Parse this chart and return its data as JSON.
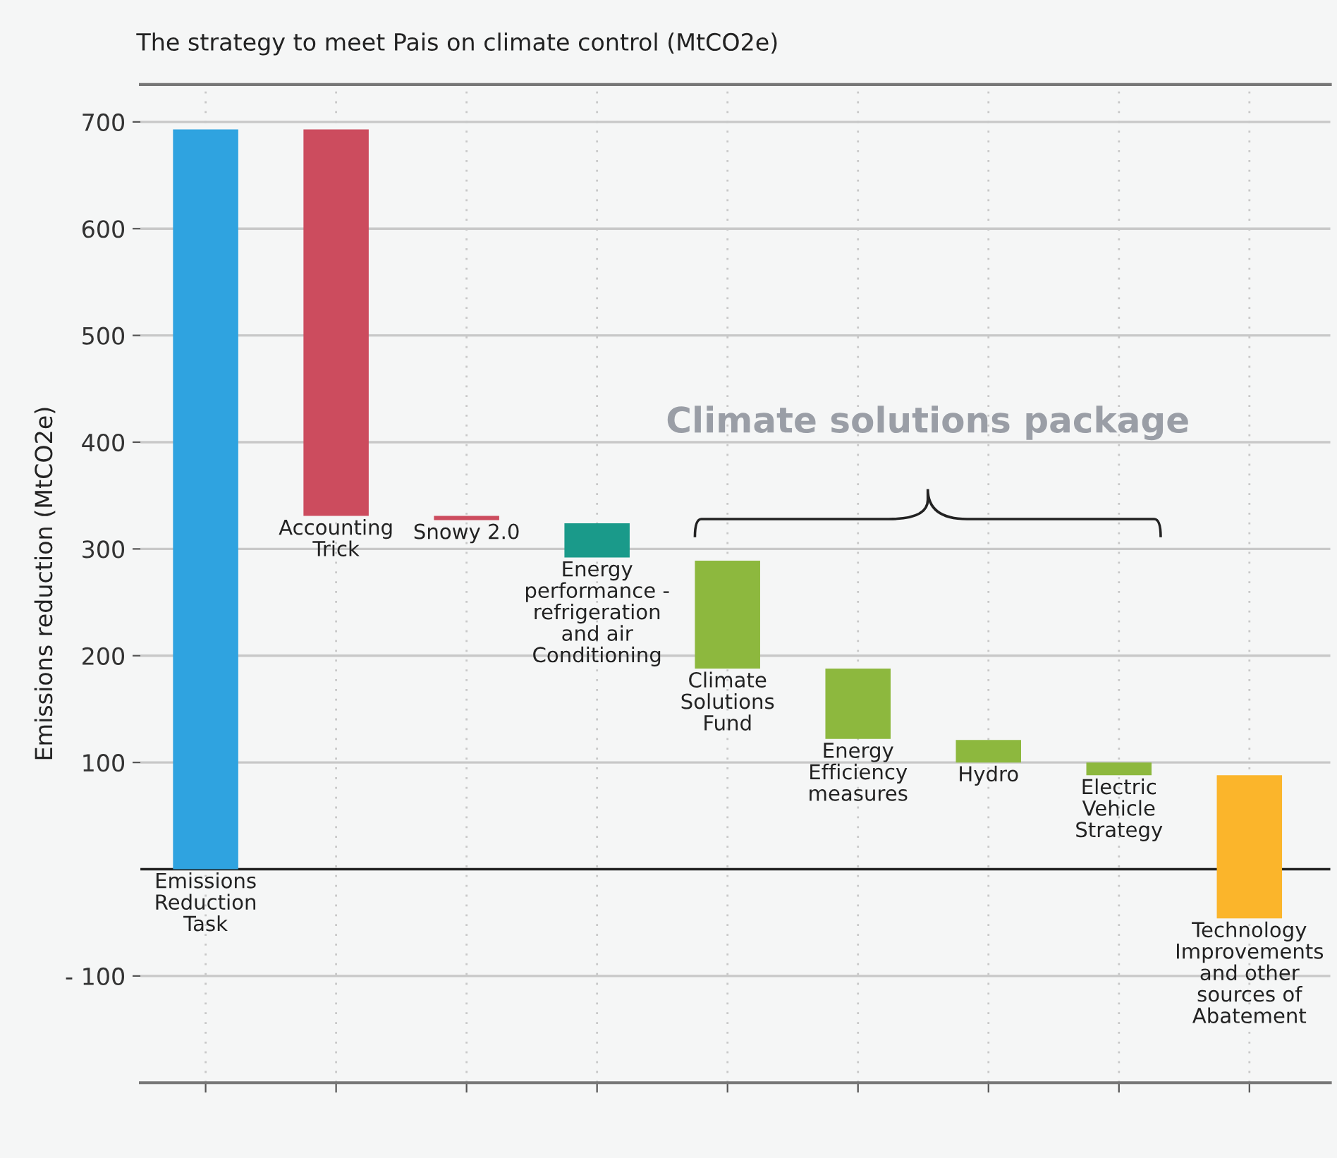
{
  "chart_data": {
    "type": "bar",
    "title": "The strategy to meet Pais on climate control (MtCO2e)",
    "ylabel": "Emissions reduction (MtCO2e)",
    "categories": [
      "Emissions\nReduction\nTask",
      "Accounting\nTrick",
      "Snowy 2.0",
      "Energy\nperformance -\nrefrigeration\nand air\nConditioning",
      "Climate\nSolutions\nFund",
      "Energy\nEfficiency\nmeasures",
      "Hydro",
      "Electric\nVehicle\nStrategy",
      "Technology\nImprovements\nand other\nsources of\nAbatement"
    ],
    "values": [
      693,
      362,
      4,
      32,
      101,
      66,
      21,
      12,
      134
    ],
    "base": [
      0,
      331,
      327,
      292,
      188,
      122,
      100,
      88,
      -46
    ],
    "colors": [
      "#2fa3e0",
      "#cc4c5e",
      "#cc4c5e",
      "#1a9a8a",
      "#8db83e",
      "#8db83e",
      "#8db83e",
      "#8db83e",
      "#fbb52b"
    ],
    "ylim": [
      -200,
      735
    ],
    "yticks": [
      {
        "value": -100,
        "label": "- 100"
      },
      100,
      200,
      300,
      400,
      500,
      600,
      700
    ],
    "ref_lines": [
      {
        "axis": "y",
        "value": 0,
        "color": "#222222"
      }
    ],
    "annotations": [
      "Climate solutions package"
    ],
    "grid": true
  }
}
